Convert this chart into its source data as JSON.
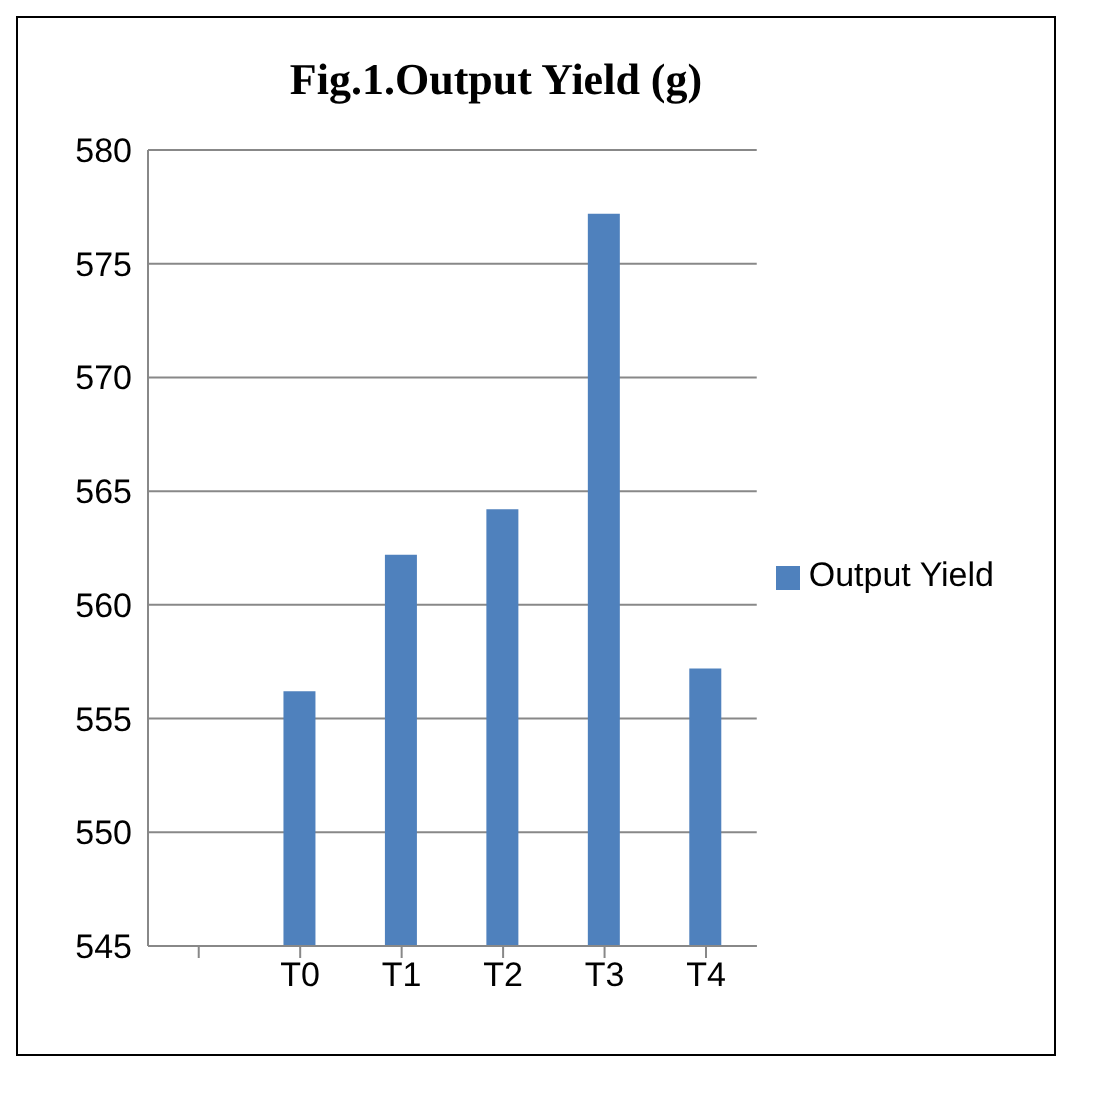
{
  "chart_data": {
    "type": "bar",
    "title": "Fig.1.Output Yield (g)",
    "categories": [
      null,
      "T0",
      "T1",
      "T2",
      "T3",
      "T4"
    ],
    "series": [
      {
        "name": "Output Yield",
        "color": "#4f81bd",
        "values": [
          null,
          556.2,
          562.2,
          564.2,
          577.2,
          557.2
        ]
      }
    ],
    "ylim": [
      545,
      580
    ],
    "yticks": [
      545,
      550,
      555,
      560,
      565,
      570,
      575,
      580
    ],
    "grid": "y",
    "legend": "right"
  }
}
